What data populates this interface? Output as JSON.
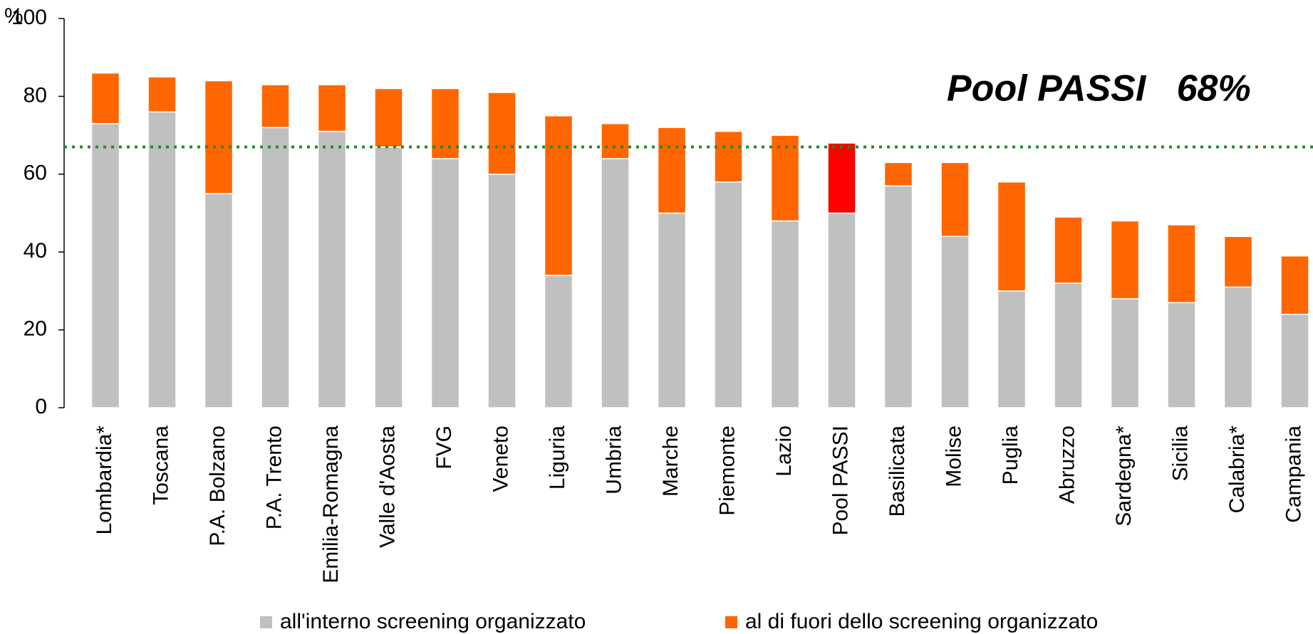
{
  "chart_data": {
    "type": "stacked_bar",
    "y_axis_label": "%",
    "annotation": "Pool PASSI   68%",
    "reference_line": 67,
    "categories": [
      "Lombardia*",
      "Toscana",
      "P.A. Bolzano",
      "P.A. Trento",
      "Emilia-Romagna",
      "Valle d'Aosta",
      "FVG",
      "Veneto",
      "Liguria",
      "Umbria",
      "Marche",
      "Piemonte",
      "Lazio",
      "Pool PASSI",
      "Basilicata",
      "Molise",
      "Puglia",
      "Abruzzo",
      "Sardegna*",
      "Sicilia",
      "Calabria*",
      "Campania"
    ],
    "series": [
      {
        "name": "all'interno screening organizzato",
        "color": "#c0c0c0",
        "values": [
          73,
          76,
          55,
          72,
          71,
          67,
          64,
          60,
          34,
          64,
          50,
          58,
          48,
          50,
          57,
          44,
          30,
          32,
          28,
          27,
          31,
          24
        ]
      },
      {
        "name": "al di fuori dello screening organizzato",
        "color": "#ff6600",
        "point_colors": [
          "#ff6600",
          "#ff6600",
          "#ff6600",
          "#ff6600",
          "#ff6600",
          "#ff6600",
          "#ff6600",
          "#ff6600",
          "#ff6600",
          "#ff6600",
          "#ff6600",
          "#ff6600",
          "#ff6600",
          "#ff0000",
          "#ff6600",
          "#ff6600",
          "#ff6600",
          "#ff6600",
          "#ff6600",
          "#ff6600",
          "#ff6600",
          "#ff6600"
        ],
        "values": [
          13,
          9,
          29,
          11,
          12,
          15,
          18,
          21,
          41,
          9,
          22,
          13,
          22,
          18,
          6,
          19,
          28,
          17,
          20,
          20,
          13,
          15
        ]
      }
    ],
    "reference_color": "#228b22",
    "annotation_color": "#2e9a5a",
    "ylim": [
      0,
      100
    ],
    "yticks": [
      0,
      20,
      40,
      60,
      80,
      100
    ],
    "grid": false
  }
}
